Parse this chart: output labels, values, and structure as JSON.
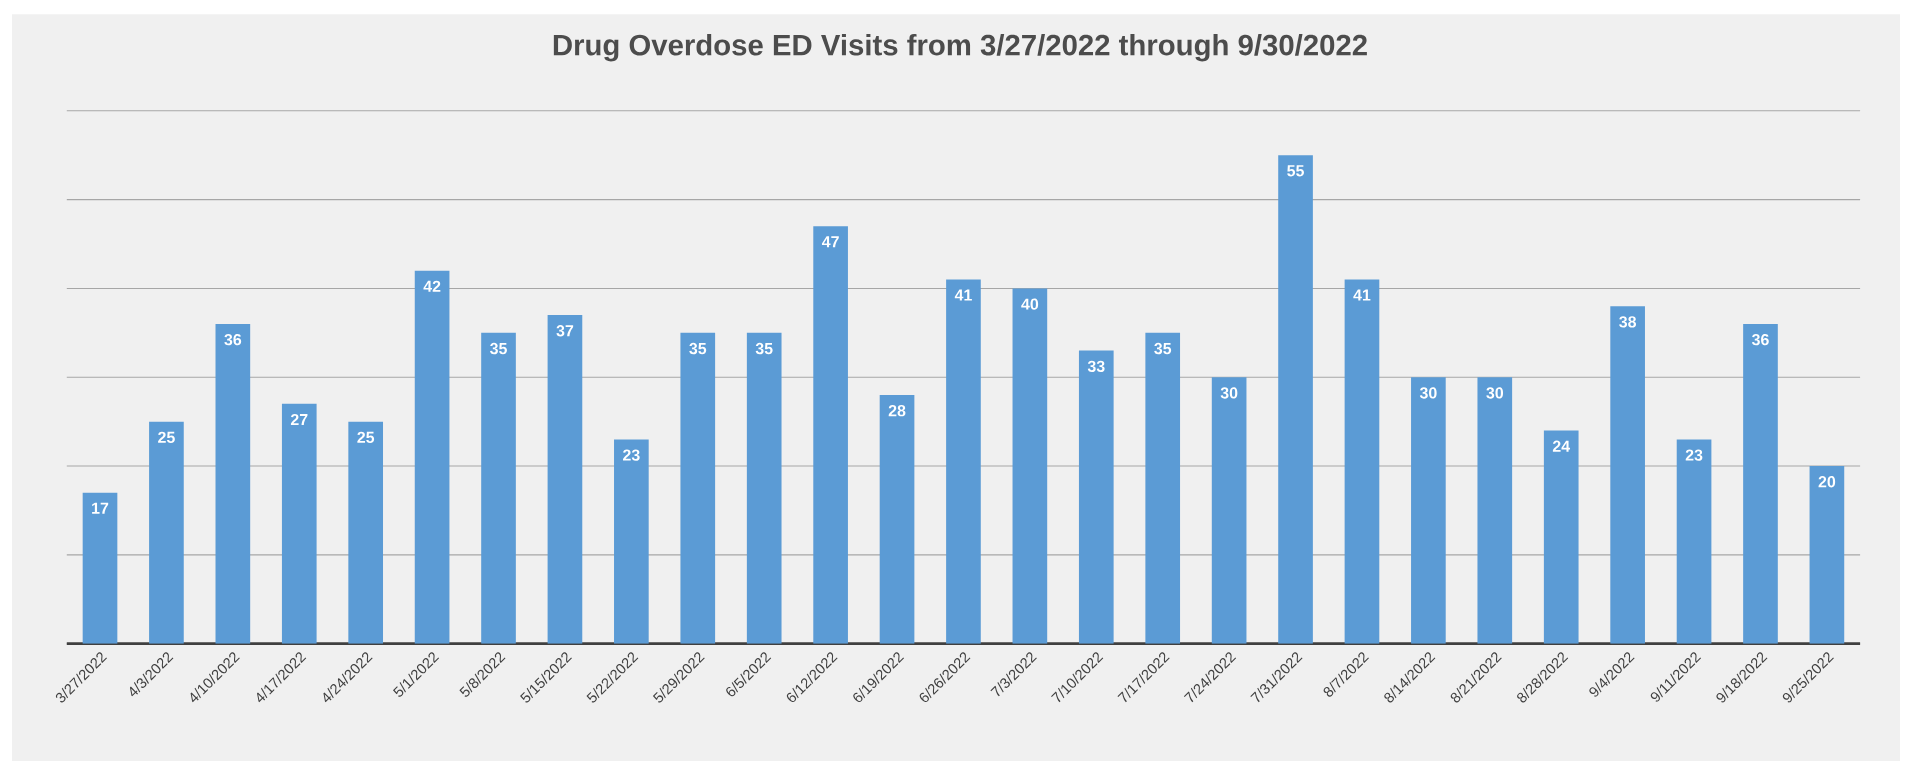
{
  "chart_data": {
    "type": "bar",
    "title": "Drug Overdose ED Visits from 3/27/2022 through 9/30/2022",
    "categories": [
      "3/27/2022",
      "4/3/2022",
      "4/10/2022",
      "4/17/2022",
      "4/24/2022",
      "5/1/2022",
      "5/8/2022",
      "5/15/2022",
      "5/22/2022",
      "5/29/2022",
      "6/5/2022",
      "6/12/2022",
      "6/19/2022",
      "6/26/2022",
      "7/3/2022",
      "7/10/2022",
      "7/17/2022",
      "7/24/2022",
      "7/31/2022",
      "8/7/2022",
      "8/14/2022",
      "8/21/2022",
      "8/28/2022",
      "9/4/2022",
      "9/11/2022",
      "9/18/2022",
      "9/25/2022"
    ],
    "values": [
      17,
      25,
      36,
      27,
      25,
      42,
      35,
      37,
      23,
      35,
      35,
      47,
      28,
      41,
      40,
      33,
      35,
      30,
      55,
      41,
      30,
      30,
      24,
      38,
      23,
      36,
      20
    ],
    "color": "#5b9bd5",
    "grid": "y",
    "tick_labels": "x",
    "data_labels": true
  }
}
